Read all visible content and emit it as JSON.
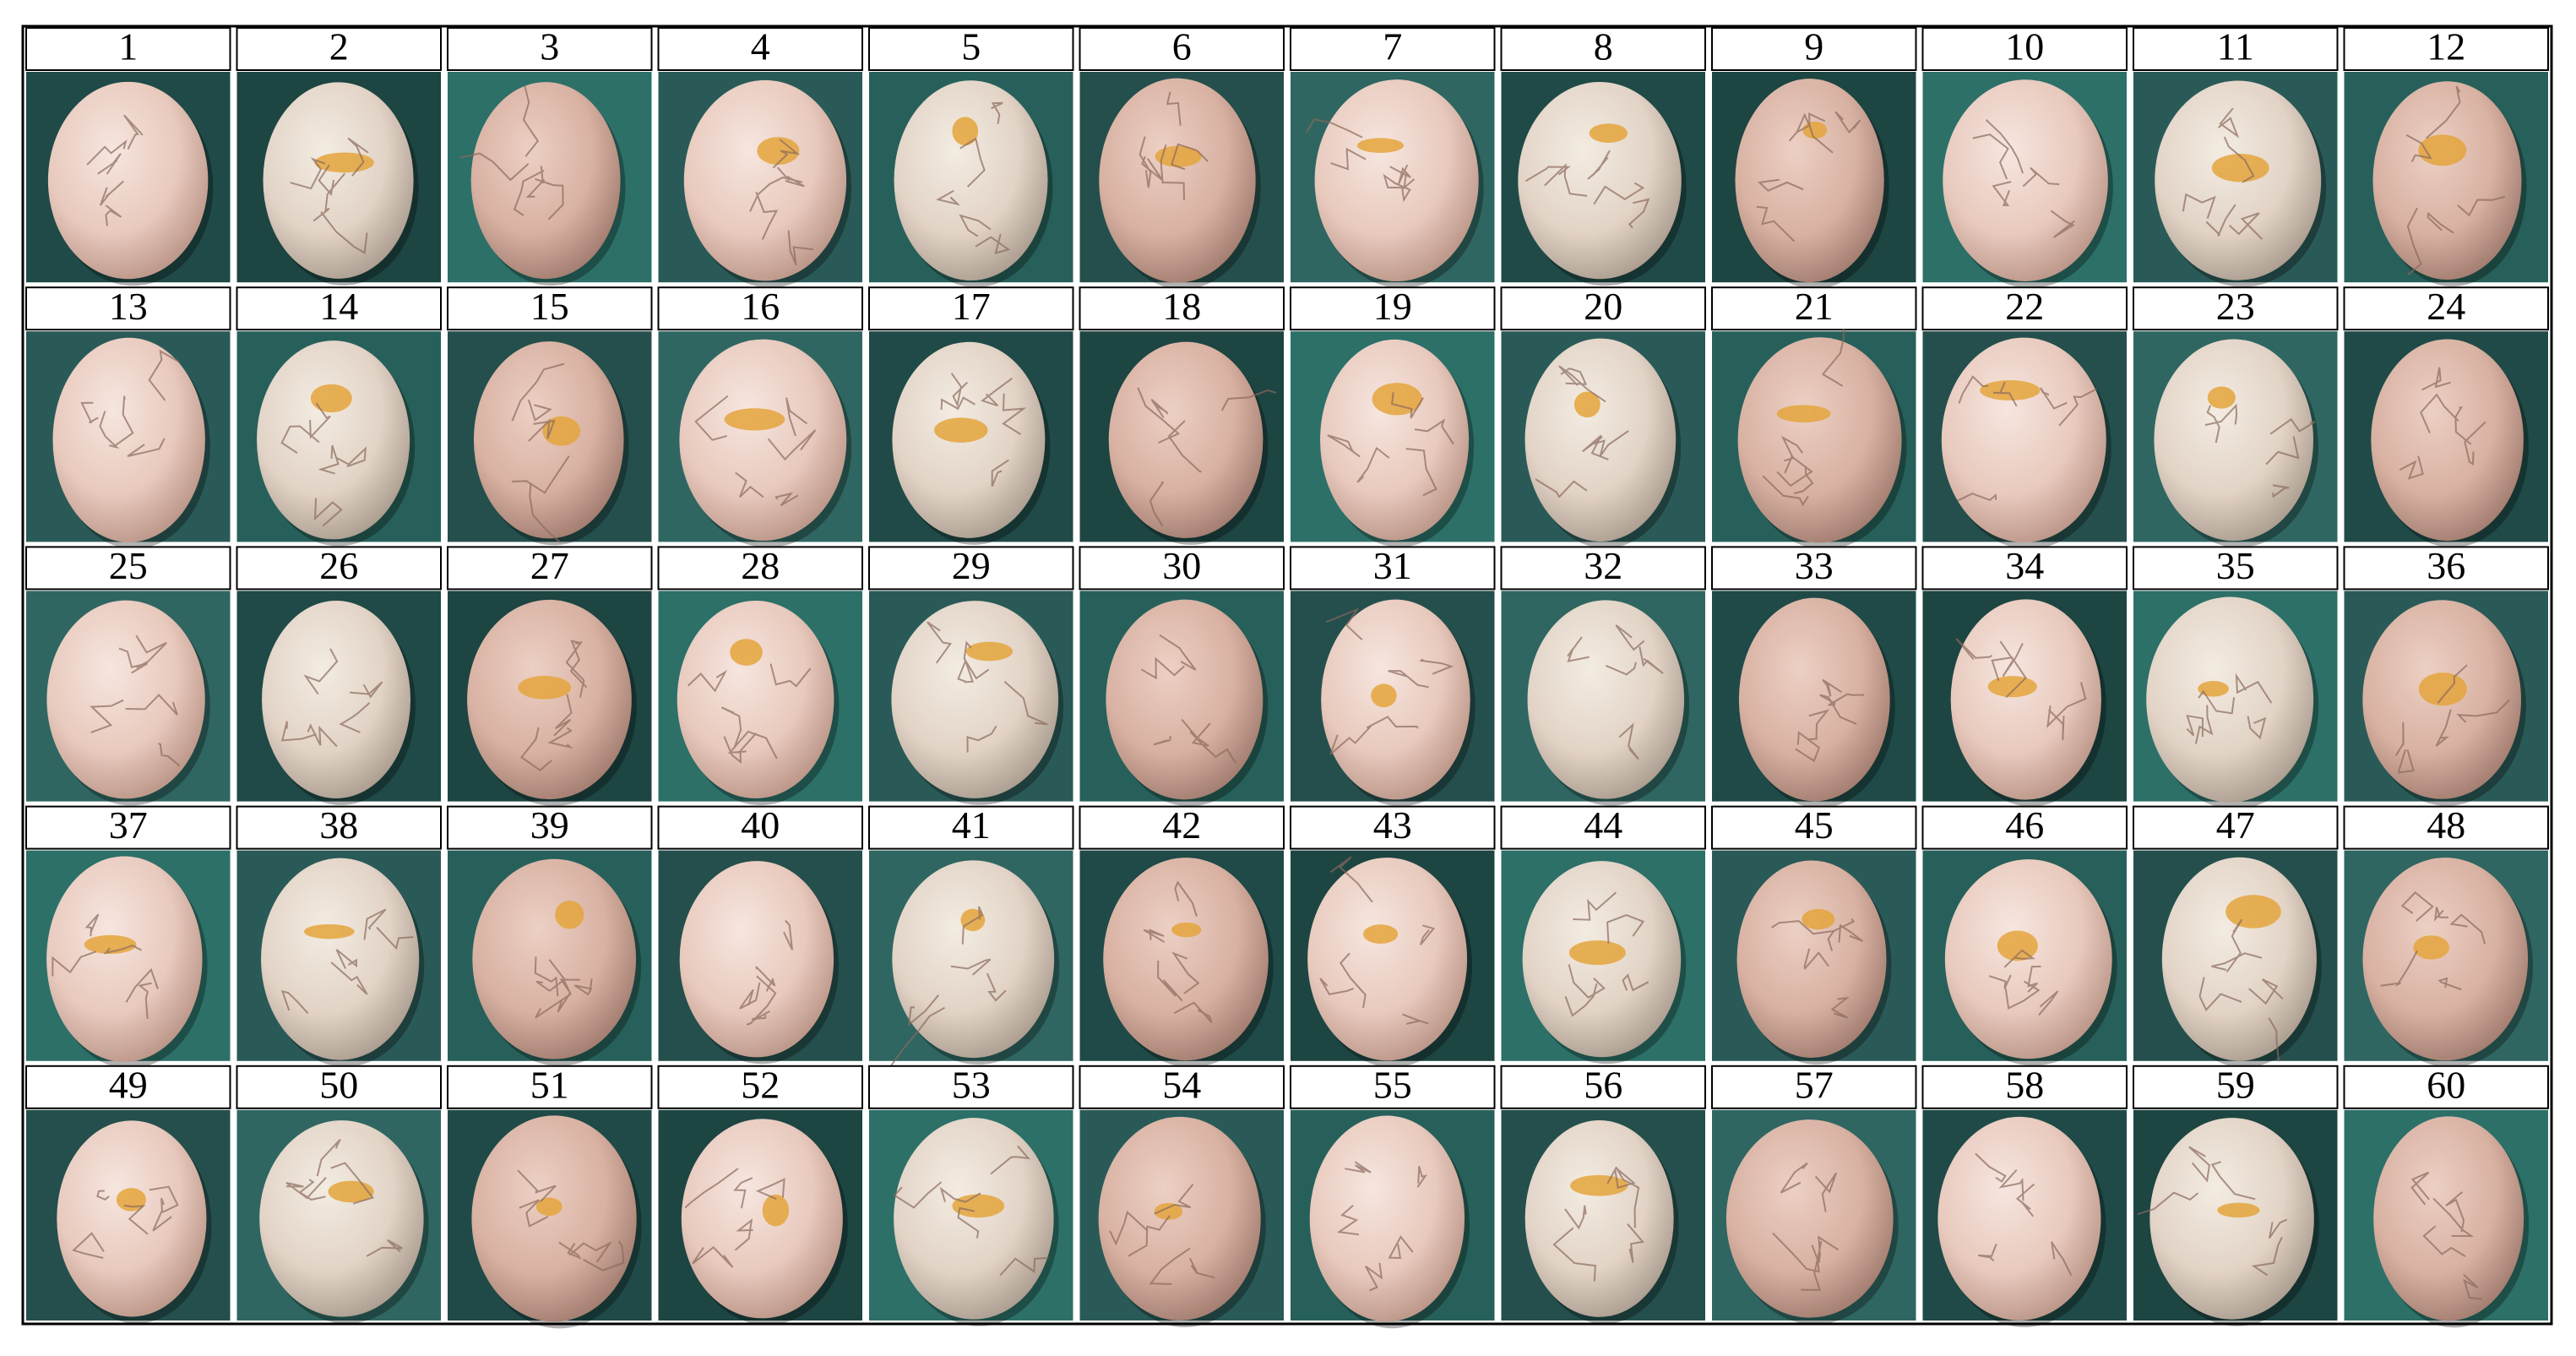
{
  "cells": [
    "1",
    "2",
    "3",
    "4",
    "5",
    "6",
    "7",
    "8",
    "9",
    "10",
    "11",
    "12",
    "13",
    "14",
    "15",
    "16",
    "17",
    "18",
    "19",
    "20",
    "21",
    "22",
    "23",
    "24",
    "25",
    "26",
    "27",
    "28",
    "29",
    "30",
    "31",
    "32",
    "33",
    "34",
    "35",
    "36",
    "37",
    "38",
    "39",
    "40",
    "41",
    "42",
    "43",
    "44",
    "45",
    "46",
    "47",
    "48",
    "49",
    "50",
    "51",
    "52",
    "53",
    "54",
    "55",
    "56",
    "57",
    "58",
    "59",
    "60"
  ]
}
